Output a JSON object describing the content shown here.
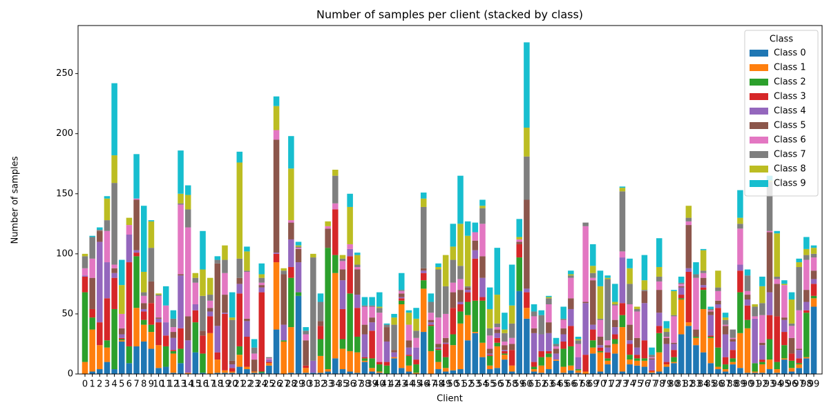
{
  "chart_data": {
    "type": "stacked_bar",
    "title": "Number of samples per client (stacked by class)",
    "x_label": "Client",
    "y_label": "Number of samples",
    "legend_title": "Class",
    "legend_position": "upper right",
    "categories": [
      "0",
      "1",
      "2",
      "3",
      "4",
      "5",
      "6",
      "7",
      "8",
      "9",
      "10",
      "11",
      "12",
      "13",
      "14",
      "15",
      "16",
      "17",
      "18",
      "19",
      "20",
      "21",
      "22",
      "23",
      "24",
      "25",
      "26",
      "27",
      "28",
      "29",
      "30",
      "31",
      "32",
      "33",
      "34",
      "35",
      "36",
      "37",
      "38",
      "39",
      "40",
      "41",
      "42",
      "43",
      "44",
      "45",
      "46",
      "47",
      "48",
      "49",
      "50",
      "51",
      "52",
      "53",
      "54",
      "55",
      "56",
      "57",
      "58",
      "59",
      "60",
      "61",
      "62",
      "63",
      "64",
      "65",
      "66",
      "67",
      "68",
      "69",
      "70",
      "71",
      "72",
      "73",
      "74",
      "75",
      "76",
      "77",
      "78",
      "79",
      "80",
      "81",
      "82",
      "83",
      "84",
      "85",
      "86",
      "87",
      "88",
      "89",
      "90",
      "91",
      "92",
      "93",
      "94",
      "95",
      "96",
      "97",
      "98",
      "99"
    ],
    "ylim": [
      0,
      290
    ],
    "yticks": [
      0,
      50,
      100,
      150,
      200,
      250
    ],
    "series": [
      {
        "name": "Class 0",
        "color": "#1f77b4",
        "values": [
          0,
          2,
          4,
          10,
          4,
          27,
          9,
          23,
          27,
          21,
          5,
          6,
          1,
          9,
          0,
          18,
          1,
          0,
          1,
          1,
          1,
          6,
          4,
          1,
          1,
          7,
          37,
          0,
          1,
          65,
          1,
          1,
          1,
          2,
          13,
          4,
          2,
          1,
          10,
          2,
          1,
          0,
          13,
          5,
          2,
          0,
          35,
          0,
          4,
          2,
          3,
          4,
          28,
          34,
          14,
          4,
          5,
          12,
          2,
          69,
          46,
          2,
          1,
          4,
          11,
          1,
          3,
          1,
          0,
          17,
          2,
          8,
          17,
          2,
          8,
          7,
          6,
          1,
          2,
          6,
          9,
          33,
          40,
          24,
          18,
          9,
          4,
          2,
          8,
          5,
          1,
          1,
          1,
          4,
          1,
          12,
          2,
          5,
          13,
          56
        ]
      },
      {
        "name": "Class 1",
        "color": "#ff7f0e",
        "values": [
          10,
          35,
          20,
          12,
          0,
          1,
          0,
          32,
          14,
          14,
          19,
          0,
          16,
          0,
          1,
          0,
          0,
          34,
          11,
          2,
          1,
          10,
          2,
          1,
          0,
          2,
          56,
          27,
          38,
          0,
          4,
          0,
          14,
          2,
          71,
          17,
          17,
          17,
          1,
          3,
          1,
          0,
          1,
          53,
          5,
          1,
          36,
          19,
          6,
          3,
          21,
          38,
          21,
          1,
          12,
          3,
          18,
          4,
          5,
          0,
          9,
          2,
          6,
          10,
          1,
          5,
          4,
          2,
          2,
          5,
          16,
          3,
          8,
          37,
          4,
          4,
          5,
          1,
          16,
          2,
          1,
          29,
          3,
          6,
          36,
          21,
          2,
          2,
          2,
          29,
          37,
          1,
          7,
          8,
          3,
          1,
          3,
          3,
          1,
          7
        ]
      },
      {
        "name": "Class 2",
        "color": "#2ca02c",
        "values": [
          58,
          10,
          0,
          6,
          50,
          1,
          14,
          43,
          4,
          6,
          0,
          17,
          2,
          12,
          0,
          25,
          16,
          0,
          0,
          0,
          0,
          7,
          0,
          0,
          1,
          0,
          0,
          1,
          41,
          3,
          0,
          0,
          14,
          101,
          15,
          8,
          48,
          13,
          2,
          8,
          6,
          7,
          0,
          3,
          8,
          7,
          7,
          21,
          10,
          9,
          9,
          10,
          11,
          26,
          35,
          8,
          3,
          1,
          0,
          28,
          0,
          2,
          7,
          3,
          0,
          15,
          16,
          1,
          0,
          6,
          1,
          2,
          4,
          10,
          4,
          2,
          2,
          0,
          16,
          0,
          4,
          1,
          0,
          1,
          16,
          1,
          16,
          4,
          3,
          34,
          7,
          7,
          2,
          17,
          6,
          11,
          6,
          1,
          37,
          2
        ]
      },
      {
        "name": "Class 3",
        "color": "#d62728",
        "values": [
          13,
          7,
          19,
          35,
          26,
          1,
          70,
          3,
          7,
          18,
          19,
          9,
          1,
          17,
          0,
          10,
          15,
          14,
          6,
          47,
          3,
          44,
          25,
          0,
          66,
          1,
          7,
          0,
          9,
          0,
          2,
          0,
          11,
          0,
          38,
          25,
          31,
          24,
          1,
          23,
          2,
          3,
          0,
          2,
          1,
          4,
          6,
          1,
          1,
          11,
          22,
          6,
          8,
          35,
          3,
          1,
          4,
          2,
          13,
          11,
          13,
          4,
          5,
          2,
          0,
          6,
          17,
          0,
          14,
          9,
          3,
          5,
          4,
          10,
          9,
          3,
          15,
          1,
          6,
          2,
          6,
          3,
          42,
          0,
          2,
          1,
          33,
          6,
          7,
          18,
          12,
          0,
          2,
          20,
          38,
          11,
          6,
          4,
          2,
          10
        ]
      },
      {
        "name": "Class 4",
        "color": "#9467bd",
        "values": [
          1,
          0,
          67,
          30,
          4,
          3,
          23,
          2,
          2,
          0,
          3,
          11,
          10,
          44,
          27,
          5,
          0,
          4,
          22,
          1,
          3,
          8,
          13,
          0,
          4,
          2,
          1,
          13,
          23,
          25,
          0,
          10,
          0,
          0,
          0,
          24,
          6,
          11,
          19,
          7,
          0,
          17,
          4,
          1,
          6,
          10,
          2,
          2,
          1,
          1,
          0,
          2,
          2,
          7,
          16,
          1,
          4,
          1,
          0,
          0,
          3,
          24,
          14,
          15,
          5,
          6,
          14,
          10,
          43,
          4,
          2,
          4,
          6,
          38,
          3,
          6,
          31,
          9,
          11,
          15,
          5,
          6,
          3,
          0,
          2,
          17,
          3,
          19,
          7,
          5,
          5,
          37,
          12,
          19,
          0,
          10,
          0,
          7,
          7,
          4
        ]
      },
      {
        "name": "Class 5",
        "color": "#8c564b",
        "values": [
          0,
          26,
          9,
          0,
          4,
          5,
          0,
          42,
          5,
          18,
          1,
          0,
          5,
          1,
          20,
          0,
          4,
          3,
          52,
          15,
          3,
          5,
          2,
          10,
          2,
          0,
          94,
          42,
          14,
          11,
          21,
          0,
          4,
          16,
          0,
          9,
          0,
          21,
          8,
          4,
          0,
          12,
          2,
          3,
          6,
          0,
          2,
          2,
          3,
          4,
          13,
          10,
          2,
          8,
          18,
          4,
          3,
          4,
          5,
          2,
          74,
          4,
          0,
          9,
          4,
          5,
          9,
          0,
          1,
          37,
          7,
          2,
          6,
          0,
          13,
          8,
          10,
          1,
          19,
          5,
          1,
          1,
          36,
          6,
          6,
          3,
          3,
          7,
          2,
          0,
          4,
          0,
          2,
          50,
          27,
          2,
          13,
          1,
          10,
          7
        ]
      },
      {
        "name": "Class 6",
        "color": "#e377c2",
        "values": [
          6,
          16,
          0,
          26,
          3,
          12,
          8,
          1,
          6,
          0,
          18,
          14,
          4,
          58,
          74,
          18,
          0,
          6,
          0,
          18,
          0,
          0,
          39,
          5,
          2,
          1,
          8,
          0,
          2,
          1,
          5,
          0,
          0,
          2,
          5,
          7,
          4,
          2,
          15,
          9,
          41,
          0,
          0,
          2,
          13,
          8,
          0,
          6,
          22,
          20,
          8,
          9,
          0,
          7,
          27,
          11,
          2,
          3,
          5,
          2,
          0,
          10,
          0,
          15,
          2,
          7,
          17,
          11,
          63,
          2,
          14,
          4,
          12,
          5,
          17,
          22,
          0,
          1,
          7,
          1,
          22,
          2,
          3,
          43,
          4,
          1,
          8,
          1,
          1,
          30,
          3,
          2,
          23,
          1,
          4,
          27,
          10,
          32,
          25,
          11
        ]
      },
      {
        "name": "Class 7",
        "color": "#7f7f7f",
        "values": [
          10,
          18,
          1,
          9,
          68,
          0,
          0,
          0,
          3,
          28,
          1,
          0,
          7,
          1,
          15,
          4,
          29,
          5,
          3,
          11,
          34,
          16,
          1,
          5,
          4,
          1,
          0,
          3,
          0,
          1,
          3,
          86,
          16,
          0,
          23,
          2,
          0,
          2,
          1,
          1,
          4,
          2,
          21,
          1,
          0,
          6,
          51,
          9,
          40,
          23,
          19,
          11,
          1,
          0,
          13,
          6,
          3,
          7,
          12,
          0,
          36,
          4,
          16,
          5,
          2,
          1,
          2,
          3,
          3,
          4,
          1,
          51,
          1,
          50,
          17,
          2,
          1,
          2,
          4,
          4,
          1,
          1,
          3,
          3,
          2,
          1,
          3,
          4,
          7,
          4,
          13,
          8,
          10,
          41,
          2,
          0,
          2,
          36,
          4,
          3
        ]
      },
      {
        "name": "Class 8",
        "color": "#bcbd22",
        "values": [
          2,
          0,
          0,
          18,
          23,
          24,
          6,
          0,
          17,
          22,
          1,
          0,
          0,
          8,
          12,
          4,
          22,
          14,
          0,
          12,
          2,
          80,
          16,
          0,
          3,
          0,
          20,
          2,
          43,
          1,
          0,
          3,
          0,
          4,
          5,
          3,
          31,
          8,
          0,
          0,
          1,
          0,
          6,
          0,
          10,
          10,
          7,
          0,
          2,
          26,
          11,
          35,
          42,
          0,
          2,
          16,
          24,
          3,
          15,
          2,
          24,
          0,
          0,
          1,
          0,
          0,
          1,
          1,
          0,
          6,
          27,
          1,
          2,
          3,
          13,
          2,
          8,
          0,
          8,
          3,
          20,
          0,
          10,
          0,
          17,
          0,
          14,
          2,
          0,
          5,
          0,
          2,
          14,
          1,
          36,
          1,
          20,
          4,
          5,
          5
        ]
      },
      {
        "name": "Class 9",
        "color": "#17becf",
        "values": [
          0,
          1,
          2,
          2,
          60,
          21,
          0,
          37,
          55,
          1,
          0,
          16,
          7,
          36,
          8,
          0,
          32,
          0,
          3,
          0,
          21,
          9,
          4,
          7,
          9,
          0,
          8,
          0,
          27,
          3,
          3,
          0,
          7,
          0,
          0,
          0,
          11,
          2,
          7,
          7,
          12,
          1,
          3,
          14,
          2,
          9,
          5,
          7,
          3,
          0,
          19,
          40,
          12,
          8,
          5,
          18,
          39,
          14,
          34,
          15,
          71,
          6,
          4,
          1,
          5,
          10,
          3,
          2,
          0,
          18,
          13,
          2,
          15,
          1,
          8,
          0,
          21,
          6,
          24,
          6,
          1,
          5,
          0,
          10,
          1,
          2,
          0,
          4,
          0,
          23,
          5,
          0,
          8,
          4,
          2,
          3,
          6,
          3,
          10,
          2
        ]
      }
    ]
  }
}
